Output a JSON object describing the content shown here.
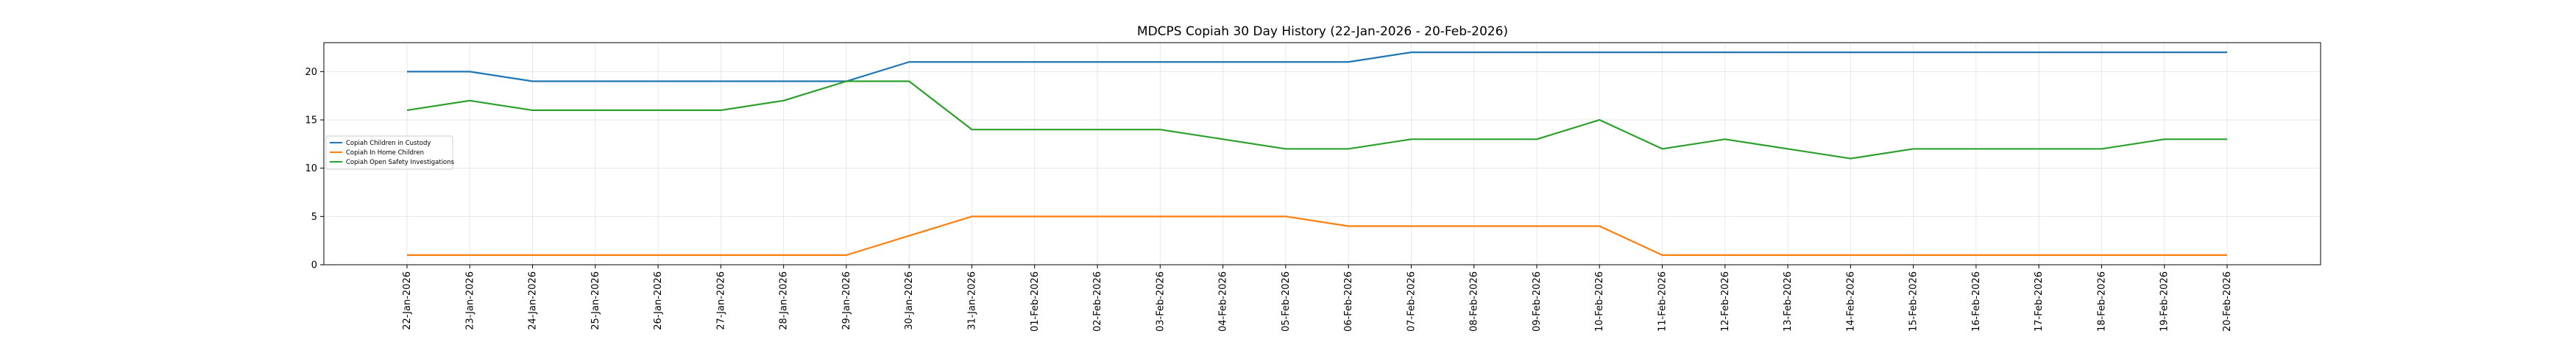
{
  "chart_data": {
    "type": "line",
    "title": "MDCPS Copiah 30 Day History (22-Jan-2026 - 20-Feb-2026)",
    "xlabel": "",
    "ylabel": "",
    "ylim": [
      0,
      23
    ],
    "yticks": [
      0,
      5,
      10,
      15,
      20
    ],
    "grid": true,
    "legend_position": "center-left",
    "categories": [
      "22-Jan-2026",
      "23-Jan-2026",
      "24-Jan-2026",
      "25-Jan-2026",
      "26-Jan-2026",
      "27-Jan-2026",
      "28-Jan-2026",
      "29-Jan-2026",
      "30-Jan-2026",
      "31-Jan-2026",
      "01-Feb-2026",
      "02-Feb-2026",
      "03-Feb-2026",
      "04-Feb-2026",
      "05-Feb-2026",
      "06-Feb-2026",
      "07-Feb-2026",
      "08-Feb-2026",
      "09-Feb-2026",
      "10-Feb-2026",
      "11-Feb-2026",
      "12-Feb-2026",
      "13-Feb-2026",
      "14-Feb-2026",
      "15-Feb-2026",
      "16-Feb-2026",
      "17-Feb-2026",
      "18-Feb-2026",
      "19-Feb-2026",
      "20-Feb-2026"
    ],
    "series": [
      {
        "name": "Copiah Children in Custody",
        "color": "#1f77b4",
        "values": [
          20,
          20,
          19,
          19,
          19,
          19,
          19,
          19,
          21,
          21,
          21,
          21,
          21,
          21,
          21,
          21,
          22,
          22,
          22,
          22,
          22,
          22,
          22,
          22,
          22,
          22,
          22,
          22,
          22,
          22
        ]
      },
      {
        "name": "Copiah In Home Children",
        "color": "#ff7f0e",
        "values": [
          1,
          1,
          1,
          1,
          1,
          1,
          1,
          1,
          3,
          5,
          5,
          5,
          5,
          5,
          5,
          4,
          4,
          4,
          4,
          4,
          1,
          1,
          1,
          1,
          1,
          1,
          1,
          1,
          1,
          1
        ]
      },
      {
        "name": "Copiah Open Safety Investigations",
        "color": "#2ca02c",
        "values": [
          16,
          17,
          16,
          16,
          16,
          16,
          17,
          19,
          19,
          14,
          14,
          14,
          14,
          13,
          12,
          12,
          13,
          13,
          13,
          15,
          12,
          13,
          12,
          11,
          12,
          12,
          12,
          12,
          13,
          13
        ]
      }
    ]
  }
}
